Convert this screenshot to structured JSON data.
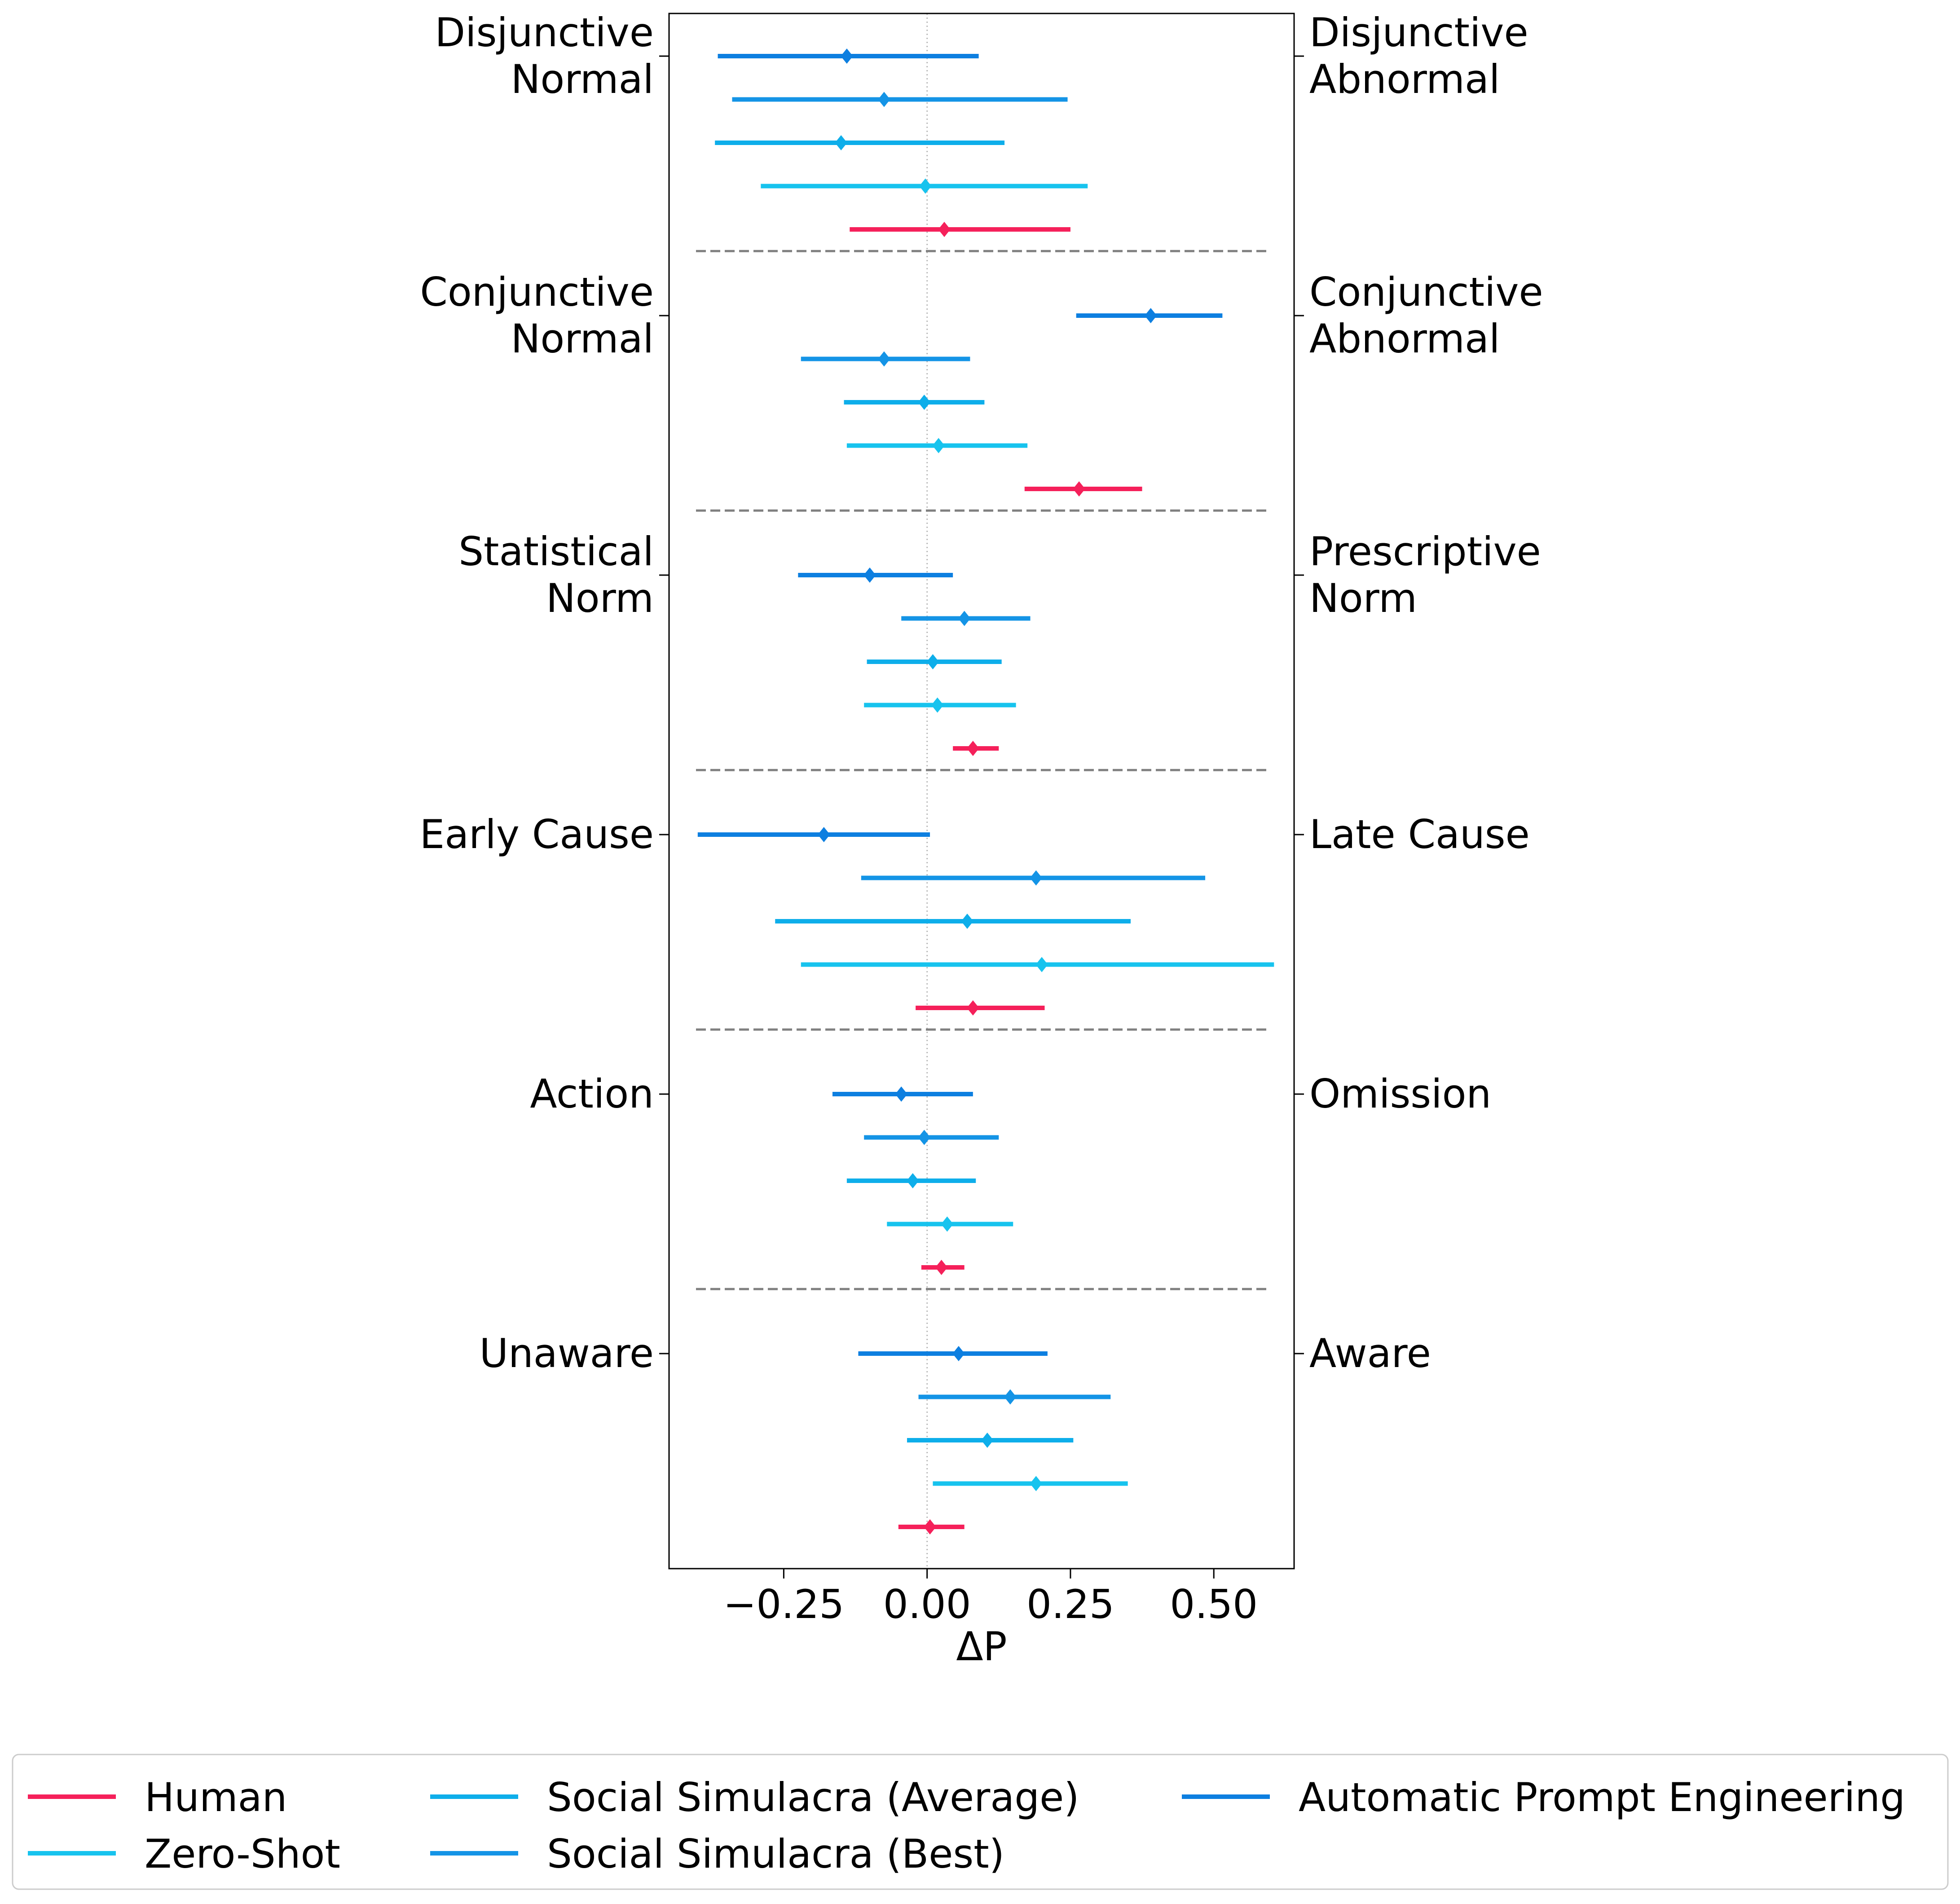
{
  "chart_data": {
    "type": "forest",
    "xlabel": "ΔP",
    "xlim": [
      -0.45,
      0.64
    ],
    "xticks": [
      -0.25,
      0.0,
      0.25,
      0.5
    ],
    "xtick_labels": [
      "−0.25",
      "0.00",
      "0.25",
      "0.50"
    ],
    "zero_reference_line": "dotted",
    "group_separators": "dashed",
    "legend": {
      "position": "bottom",
      "columns": 3
    },
    "groups": [
      {
        "left_label": [
          "Disjunctive",
          "Normal"
        ],
        "right_label": [
          "Disjunctive",
          "Abnormal"
        ]
      },
      {
        "left_label": [
          "Conjunctive",
          "Normal"
        ],
        "right_label": [
          "Conjunctive",
          "Abnormal"
        ]
      },
      {
        "left_label": [
          "Statistical",
          "Norm"
        ],
        "right_label": [
          "Prescriptive",
          "Norm"
        ]
      },
      {
        "left_label": [
          "Early Cause"
        ],
        "right_label": [
          "Late Cause"
        ]
      },
      {
        "left_label": [
          "Action"
        ],
        "right_label": [
          "Omission"
        ]
      },
      {
        "left_label": [
          "Unaware"
        ],
        "right_label": [
          "Aware"
        ]
      }
    ],
    "series": [
      {
        "name": "Automatic Prompt Engineering",
        "color": "#0d7fe0",
        "points": [
          {
            "mean": -0.14,
            "low": -0.365,
            "high": 0.09
          },
          {
            "mean": 0.39,
            "low": 0.26,
            "high": 0.515
          },
          {
            "mean": -0.1,
            "low": -0.225,
            "high": 0.045
          },
          {
            "mean": -0.18,
            "low": -0.4,
            "high": 0.005
          },
          {
            "mean": -0.045,
            "low": -0.165,
            "high": 0.08
          },
          {
            "mean": 0.055,
            "low": -0.12,
            "high": 0.21
          }
        ]
      },
      {
        "name": "Social Simulacra (Best)",
        "color": "#1494e6",
        "points": [
          {
            "mean": -0.075,
            "low": -0.34,
            "high": 0.245
          },
          {
            "mean": -0.075,
            "low": -0.22,
            "high": 0.075
          },
          {
            "mean": 0.065,
            "low": -0.045,
            "high": 0.18
          },
          {
            "mean": 0.19,
            "low": -0.115,
            "high": 0.485
          },
          {
            "mean": -0.005,
            "low": -0.11,
            "high": 0.125
          },
          {
            "mean": 0.145,
            "low": -0.015,
            "high": 0.32
          }
        ]
      },
      {
        "name": "Social Simulacra (Average)",
        "color": "#0eaeea",
        "points": [
          {
            "mean": -0.15,
            "low": -0.37,
            "high": 0.135
          },
          {
            "mean": -0.005,
            "low": -0.145,
            "high": 0.1
          },
          {
            "mean": 0.01,
            "low": -0.105,
            "high": 0.13
          },
          {
            "mean": 0.07,
            "low": -0.265,
            "high": 0.355
          },
          {
            "mean": -0.025,
            "low": -0.14,
            "high": 0.085
          },
          {
            "mean": 0.105,
            "low": -0.035,
            "high": 0.255
          }
        ]
      },
      {
        "name": "Zero-Shot",
        "color": "#17c3ee",
        "points": [
          {
            "mean": -0.003,
            "low": -0.29,
            "high": 0.28
          },
          {
            "mean": 0.02,
            "low": -0.14,
            "high": 0.175
          },
          {
            "mean": 0.018,
            "low": -0.11,
            "high": 0.155
          },
          {
            "mean": 0.2,
            "low": -0.22,
            "high": 0.605
          },
          {
            "mean": 0.035,
            "low": -0.07,
            "high": 0.15
          },
          {
            "mean": 0.19,
            "low": 0.01,
            "high": 0.35
          }
        ]
      },
      {
        "name": "Human",
        "color": "#f5205a",
        "points": [
          {
            "mean": 0.03,
            "low": -0.135,
            "high": 0.25
          },
          {
            "mean": 0.265,
            "low": 0.17,
            "high": 0.375
          },
          {
            "mean": 0.08,
            "low": 0.045,
            "high": 0.125
          },
          {
            "mean": 0.08,
            "low": -0.02,
            "high": 0.205
          },
          {
            "mean": 0.025,
            "low": -0.01,
            "high": 0.065
          },
          {
            "mean": 0.005,
            "low": -0.05,
            "high": 0.065
          }
        ]
      }
    ],
    "legend_order": [
      "Human",
      "Zero-Shot",
      "Social Simulacra (Average)",
      "Social Simulacra (Best)",
      "Automatic Prompt Engineering"
    ]
  }
}
